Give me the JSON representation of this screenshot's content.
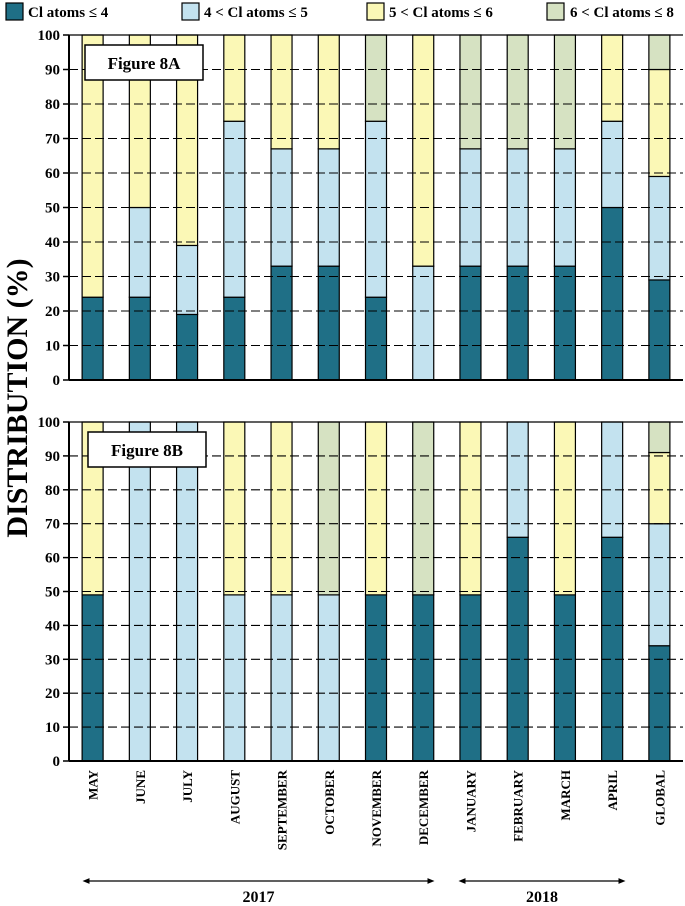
{
  "legend": [
    {
      "label": "Cl atoms ≤ 4",
      "color": "#1f6f86"
    },
    {
      "label": "4 < Cl atoms ≤ 5",
      "color": "#c3e2ef"
    },
    {
      "label": "5 < Cl atoms ≤ 6",
      "color": "#fbf8b6"
    },
    {
      "label": "6 < Cl atoms ≤ 8",
      "color": "#d6e2c2"
    }
  ],
  "ylabel": "DISTRIBUTION (%)",
  "years": [
    {
      "label": "2017"
    },
    {
      "label": "2018"
    }
  ],
  "chart_data": [
    {
      "type": "bar",
      "stacked": true,
      "title": "Figure 8A",
      "xlabel": "",
      "ylabel": "DISTRIBUTION (%)",
      "ylim": [
        0,
        100
      ],
      "yticks": [
        0,
        10,
        20,
        30,
        40,
        50,
        60,
        70,
        80,
        90,
        100
      ],
      "grid": true,
      "categories": [
        "MAY",
        "JUNE",
        "JULY",
        "AUGUST",
        "SEPTEMBER",
        "OCTOBER",
        "NOVEMBER",
        "DECEMBER",
        "JANUARY",
        "FEBRUARY",
        "MARCH",
        "APRIL",
        "GLOBAL"
      ],
      "series": [
        {
          "name": "Cl atoms ≤ 4",
          "values": [
            24,
            24,
            19,
            24,
            33,
            33,
            24,
            0,
            33,
            33,
            33,
            50,
            29
          ]
        },
        {
          "name": "4 < Cl atoms ≤ 5",
          "values": [
            0,
            26,
            20,
            51,
            34,
            34,
            51,
            33,
            34,
            34,
            34,
            25,
            30
          ]
        },
        {
          "name": "5 < Cl atoms ≤ 6",
          "values": [
            76,
            50,
            61,
            25,
            33,
            33,
            0,
            67,
            0,
            0,
            0,
            25,
            31
          ]
        },
        {
          "name": "6 < Cl atoms ≤ 8",
          "values": [
            0,
            0,
            0,
            0,
            0,
            0,
            25,
            0,
            33,
            33,
            33,
            0,
            10
          ]
        }
      ]
    },
    {
      "type": "bar",
      "stacked": true,
      "title": "Figure 8B",
      "xlabel": "",
      "ylabel": "DISTRIBUTION (%)",
      "ylim": [
        0,
        100
      ],
      "yticks": [
        0,
        10,
        20,
        30,
        40,
        50,
        60,
        70,
        80,
        90,
        100
      ],
      "grid": true,
      "categories": [
        "MAY",
        "JUNE",
        "JULY",
        "AUGUST",
        "SEPTEMBER",
        "OCTOBER",
        "NOVEMBER",
        "DECEMBER",
        "JANUARY",
        "FEBRUARY",
        "MARCH",
        "APRIL",
        "GLOBAL"
      ],
      "series": [
        {
          "name": "Cl atoms ≤ 4",
          "values": [
            49,
            0,
            0,
            0,
            0,
            0,
            49,
            49,
            49,
            66,
            49,
            66,
            34
          ]
        },
        {
          "name": "4 < Cl atoms ≤ 5",
          "values": [
            0,
            100,
            100,
            49,
            49,
            49,
            0,
            0,
            0,
            34,
            0,
            34,
            36
          ]
        },
        {
          "name": "5 < Cl atoms ≤ 6",
          "values": [
            51,
            0,
            0,
            51,
            51,
            0,
            51,
            0,
            51,
            0,
            51,
            0,
            21
          ]
        },
        {
          "name": "6 < Cl atoms ≤ 8",
          "values": [
            0,
            0,
            0,
            0,
            0,
            51,
            0,
            51,
            0,
            0,
            0,
            0,
            9
          ]
        }
      ]
    }
  ]
}
